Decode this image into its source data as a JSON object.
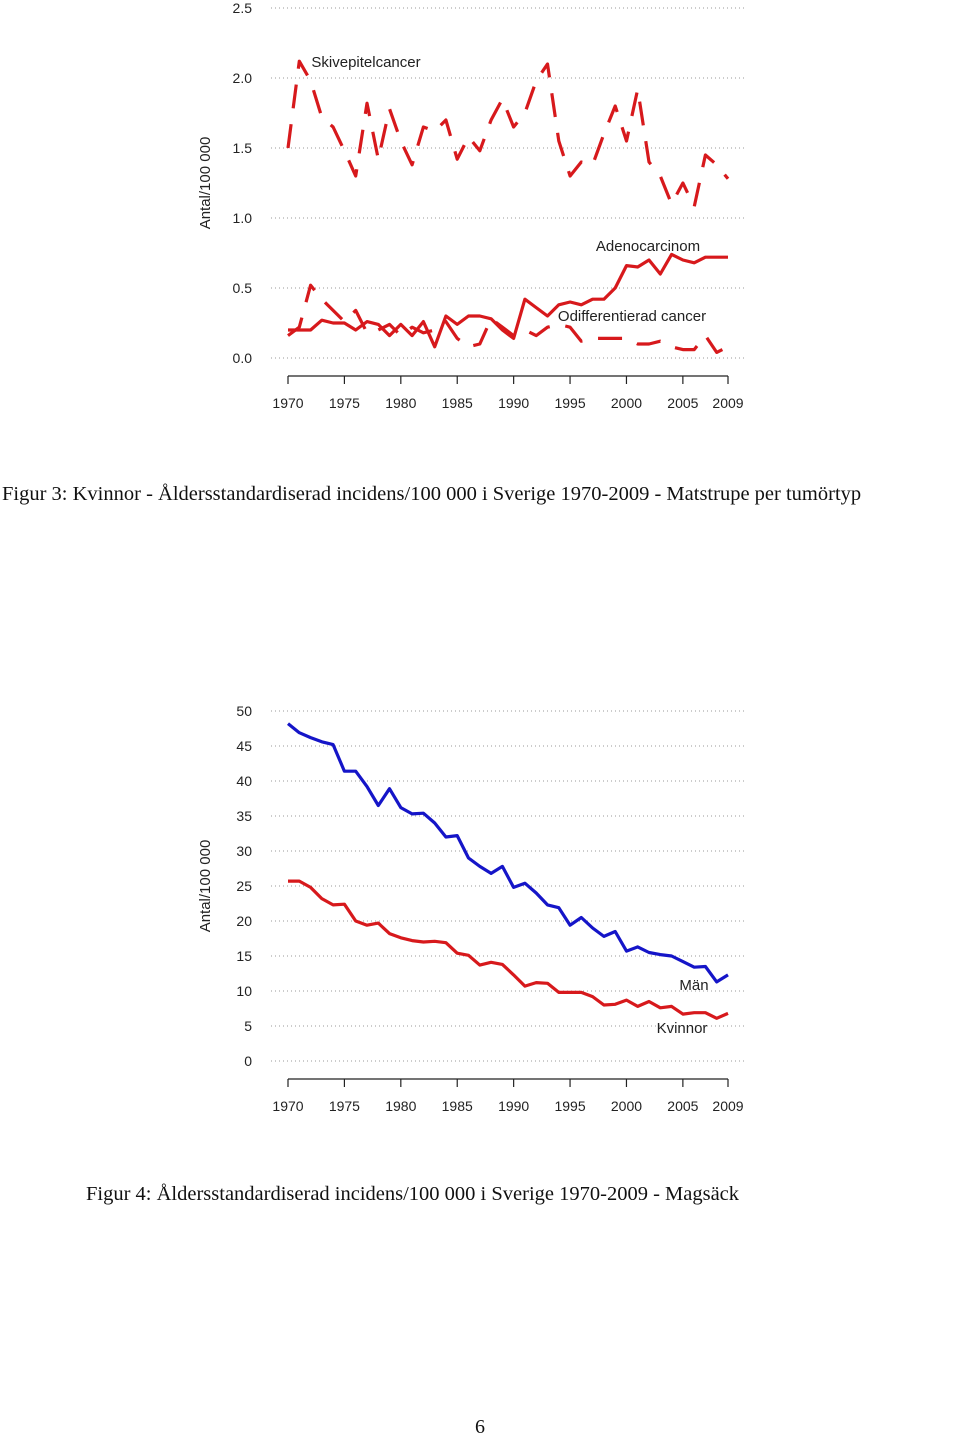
{
  "chart_data": [
    {
      "type": "line",
      "title": "",
      "xlabel": "",
      "ylabel": "Antal/100 000",
      "xlim": [
        1970,
        2009
      ],
      "ylim": [
        0,
        2.5
      ],
      "x_ticks": [
        "1970",
        "1975",
        "1980",
        "1985",
        "1990",
        "1995",
        "2000",
        "2005",
        "2009"
      ],
      "y_ticks": [
        "0.0",
        "0.5",
        "1.0",
        "1.5",
        "2.0",
        "2.5"
      ],
      "grid": "horizontal dotted",
      "x": [
        1970,
        1971,
        1972,
        1973,
        1974,
        1975,
        1976,
        1977,
        1978,
        1979,
        1980,
        1981,
        1982,
        1983,
        1984,
        1985,
        1986,
        1987,
        1988,
        1989,
        1990,
        1991,
        1992,
        1993,
        1994,
        1995,
        1996,
        1997,
        1998,
        1999,
        2000,
        2001,
        2002,
        2003,
        2004,
        2005,
        2006,
        2007,
        2008,
        2009
      ],
      "series": [
        {
          "name": "Skivepitelcancer",
          "style": "dashed",
          "color": "#d7191c",
          "values": [
            1.5,
            2.12,
            1.98,
            1.72,
            1.65,
            1.48,
            1.3,
            1.82,
            1.42,
            1.78,
            1.55,
            1.38,
            1.65,
            1.62,
            1.7,
            1.42,
            1.58,
            1.48,
            1.7,
            1.85,
            1.65,
            1.75,
            1.98,
            2.1,
            1.55,
            1.3,
            1.4,
            1.38,
            1.6,
            1.8,
            1.55,
            1.92,
            1.4,
            1.3,
            1.1,
            1.25,
            1.08,
            1.45,
            1.38,
            1.28
          ]
        },
        {
          "name": "Adenocarcinom",
          "style": "solid",
          "color": "#d7191c",
          "values": [
            0.2,
            0.2,
            0.2,
            0.27,
            0.25,
            0.25,
            0.2,
            0.26,
            0.24,
            0.16,
            0.24,
            0.16,
            0.26,
            0.08,
            0.3,
            0.24,
            0.3,
            0.3,
            0.28,
            0.2,
            0.14,
            0.42,
            0.36,
            0.3,
            0.38,
            0.4,
            0.38,
            0.42,
            0.42,
            0.5,
            0.66,
            0.65,
            0.7,
            0.6,
            0.74,
            0.7,
            0.68,
            0.72,
            0.72,
            0.72
          ]
        },
        {
          "name": "Odifferentierad cancer",
          "style": "dashed",
          "color": "#d7191c",
          "values": [
            0.16,
            0.22,
            0.52,
            0.42,
            0.34,
            0.26,
            0.34,
            0.18,
            0.2,
            0.24,
            0.16,
            0.22,
            0.18,
            0.2,
            0.26,
            0.14,
            0.08,
            0.1,
            0.28,
            0.22,
            0.16,
            0.2,
            0.16,
            0.22,
            0.24,
            0.22,
            0.12,
            0.14,
            0.14,
            0.14,
            0.14,
            0.1,
            0.1,
            0.12,
            0.08,
            0.06,
            0.06,
            0.16,
            0.04,
            0.08
          ]
        }
      ],
      "annotations": [
        "Skivepitelcancer",
        "Adenocarcinom",
        "Odifferentierad cancer"
      ]
    },
    {
      "type": "line",
      "title": "",
      "xlabel": "",
      "ylabel": "Antal/100 000",
      "xlim": [
        1970,
        2009
      ],
      "ylim": [
        0,
        50
      ],
      "x_ticks": [
        "1970",
        "1975",
        "1980",
        "1985",
        "1990",
        "1995",
        "2000",
        "2005",
        "2009"
      ],
      "y_ticks": [
        "0",
        "5",
        "10",
        "15",
        "20",
        "25",
        "30",
        "35",
        "40",
        "45",
        "50"
      ],
      "grid": "horizontal dotted",
      "x": [
        1970,
        1971,
        1972,
        1973,
        1974,
        1975,
        1976,
        1977,
        1978,
        1979,
        1980,
        1981,
        1982,
        1983,
        1984,
        1985,
        1986,
        1987,
        1988,
        1989,
        1990,
        1991,
        1992,
        1993,
        1994,
        1995,
        1996,
        1997,
        1998,
        1999,
        2000,
        2001,
        2002,
        2003,
        2004,
        2005,
        2006,
        2007,
        2008,
        2009
      ],
      "series": [
        {
          "name": "Män",
          "style": "solid",
          "color": "#1515c8",
          "values": [
            48.2,
            46.9,
            46.2,
            45.6,
            45.2,
            41.4,
            41.4,
            39.2,
            36.5,
            38.9,
            36.2,
            35.3,
            35.4,
            34.0,
            32.0,
            32.2,
            29.0,
            27.8,
            26.8,
            27.8,
            24.8,
            25.4,
            24.0,
            22.3,
            21.9,
            19.4,
            20.5,
            19.0,
            17.8,
            18.5,
            15.7,
            16.3,
            15.5,
            15.2,
            15.0,
            14.2,
            13.4,
            13.5,
            11.3,
            12.3
          ]
        },
        {
          "name": "Kvinnor",
          "style": "solid",
          "color": "#d7191c",
          "values": [
            25.7,
            25.7,
            24.8,
            23.2,
            22.3,
            22.4,
            20.0,
            19.4,
            19.7,
            18.2,
            17.6,
            17.2,
            17.0,
            17.1,
            16.9,
            15.4,
            15.1,
            13.7,
            14.1,
            13.8,
            12.3,
            10.7,
            11.2,
            11.1,
            9.8,
            9.8,
            9.8,
            9.2,
            8.0,
            8.1,
            8.7,
            7.8,
            8.5,
            7.6,
            7.8,
            6.7,
            6.9,
            6.9,
            6.1,
            6.8
          ]
        }
      ],
      "annotations": [
        "Män",
        "Kvinnor"
      ]
    }
  ],
  "captions": {
    "figure3": "Figur 3: Kvinnor - Åldersstandardiserad incidens/100 000 i Sverige 1970-2009 - Matstrupe per tumörtyp",
    "figure4": "Figur 4: Åldersstandardiserad incidens/100 000 i Sverige 1970-2009 - Magsäck"
  },
  "page_number": "6"
}
